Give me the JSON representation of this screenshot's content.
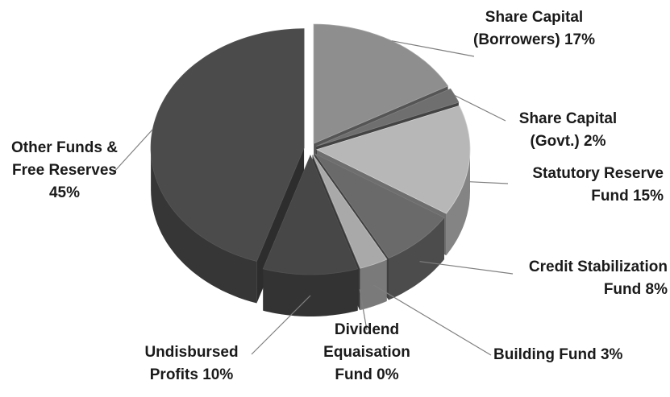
{
  "chart_data": {
    "type": "pie",
    "categories": [
      "Share Capital (Borrowers)",
      "Share Capital (Govt.)",
      "Statutory Reserve Fund",
      "Credit Stabilization Fund",
      "Building Fund",
      "Dividend Equaisation Fund",
      "Undisbursed Profits",
      "Other Funds & Free Reserves"
    ],
    "values": [
      17,
      2,
      15,
      8,
      3,
      0,
      10,
      45
    ],
    "value_labels": [
      "17%",
      "2%",
      "15%",
      "8%",
      "3%",
      "0%",
      "10%",
      "45%"
    ],
    "colors": [
      "#8e8e8e",
      "#6f6f6f",
      "#b7b7b7",
      "#6a6a6a",
      "#a9a9a9",
      "#5a5a5a",
      "#474747",
      "#4b4b4b"
    ]
  }
}
